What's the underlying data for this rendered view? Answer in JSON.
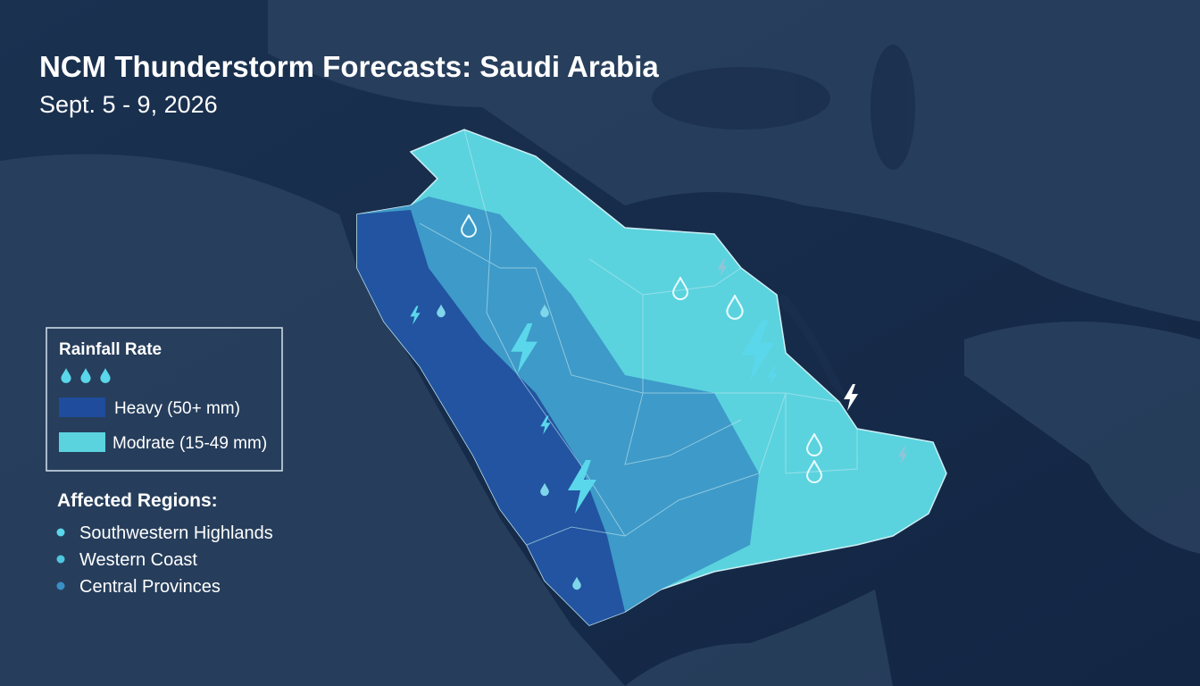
{
  "header": {
    "title": "NCM Thunderstorm Forecasts: Saudi Arabia",
    "subtitle": "Sept. 5 - 9, 2026"
  },
  "legend": {
    "title": "Rainfall Rate",
    "items": [
      "Heavy (50+ mm)",
      "Modrate (15-49 mm)"
    ]
  },
  "regions": {
    "title": "Affected Regions:",
    "items": [
      "Southwestern Highlands",
      "Western Coast",
      "Central Provinces"
    ]
  }
}
